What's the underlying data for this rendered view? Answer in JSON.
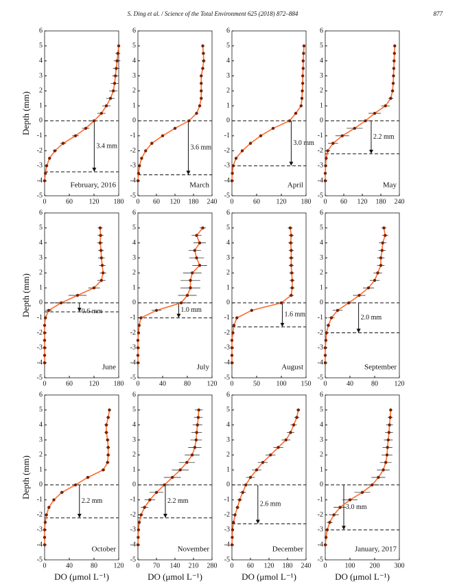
{
  "header": {
    "citation": "S. Ding et al. / Science of the Total Environment 625 (2018) 872–884",
    "page": "877"
  },
  "chart_data": [
    {
      "type": "profile",
      "label": "February, 2016",
      "annotation": "3.4 mm",
      "ylabel": "Depth (mm)",
      "hlines": [
        0,
        -3.4
      ],
      "xlim": [
        0,
        180
      ],
      "xticks": [
        0,
        60,
        120,
        180
      ],
      "ylim": [
        -5,
        6
      ],
      "yticks": [
        -5,
        -4,
        -3,
        -2,
        -1,
        0,
        1,
        2,
        3,
        4,
        5,
        6
      ],
      "y": [
        5,
        4.5,
        4,
        3.5,
        3,
        2.5,
        2,
        1.5,
        1,
        0.5,
        0,
        -0.5,
        -1,
        -1.5,
        -2,
        -2.5,
        -3,
        -3.5,
        -4
      ],
      "x": [
        180,
        178,
        176,
        174,
        172,
        170,
        167,
        160,
        150,
        138,
        120,
        100,
        75,
        45,
        25,
        12,
        5,
        2,
        0
      ],
      "xerr": [
        3,
        6,
        8,
        8,
        8,
        9,
        10,
        10,
        10,
        10,
        9,
        9,
        8,
        7,
        5,
        3,
        2,
        1,
        0
      ]
    },
    {
      "type": "profile",
      "label": "March",
      "annotation": "3.6 mm",
      "hlines": [
        0,
        -3.6
      ],
      "xlim": [
        0,
        240
      ],
      "xticks": [
        0,
        60,
        120,
        180,
        240
      ],
      "ylim": [
        -5,
        6
      ],
      "yticks": [
        -5,
        -4,
        -3,
        -2,
        -1,
        0,
        1,
        2,
        3,
        4,
        5,
        6
      ],
      "y": [
        5,
        4.5,
        4,
        3.5,
        3,
        2.5,
        2,
        1.5,
        1,
        0.5,
        0,
        -0.5,
        -1,
        -1.5,
        -2,
        -2.5,
        -3,
        -3.5,
        -4
      ],
      "x": [
        210,
        212,
        213,
        210,
        205,
        205,
        205,
        205,
        200,
        190,
        165,
        120,
        80,
        45,
        25,
        12,
        5,
        2,
        0
      ],
      "xerr": [
        4,
        5,
        6,
        5,
        4,
        4,
        4,
        4,
        4,
        5,
        5,
        5,
        4,
        4,
        3,
        2,
        1,
        1,
        0
      ]
    },
    {
      "type": "profile",
      "label": "April",
      "annotation": "3.0 mm",
      "hlines": [
        0,
        -3
      ],
      "xlim": [
        0,
        180
      ],
      "xticks": [
        0,
        60,
        120,
        180
      ],
      "ylim": [
        -5,
        6
      ],
      "yticks": [
        -5,
        -4,
        -3,
        -2,
        -1,
        0,
        1,
        2,
        3,
        4,
        5,
        6
      ],
      "y": [
        5,
        4.5,
        4,
        3.5,
        3,
        2.5,
        2,
        1.5,
        1,
        0.5,
        0,
        -0.5,
        -1,
        -1.5,
        -2,
        -2.5,
        -3,
        -3.5,
        -4
      ],
      "x": [
        175,
        174,
        173,
        173,
        172,
        172,
        171,
        170,
        168,
        155,
        140,
        100,
        70,
        45,
        25,
        10,
        3,
        1,
        0
      ],
      "xerr": [
        2,
        2,
        2,
        2,
        2,
        2,
        2,
        2,
        3,
        4,
        4,
        4,
        3,
        3,
        2,
        2,
        1,
        1,
        0
      ]
    },
    {
      "type": "profile",
      "label": "May",
      "annotation": "2.2 mm",
      "hlines": [
        0,
        -2.2
      ],
      "xlim": [
        0,
        240
      ],
      "xticks": [
        0,
        60,
        120,
        180,
        240
      ],
      "ylim": [
        -5,
        6
      ],
      "yticks": [
        -5,
        -4,
        -3,
        -2,
        -1,
        0,
        1,
        2,
        3,
        4,
        5,
        6
      ],
      "y": [
        5,
        4.5,
        4,
        3.5,
        3,
        2.5,
        2,
        1.5,
        1,
        0.5,
        0,
        -0.5,
        -1,
        -1.5,
        -2,
        -2.5,
        -3,
        -3.5,
        -4
      ],
      "x": [
        225,
        224,
        223,
        222,
        221,
        220,
        218,
        212,
        195,
        160,
        130,
        95,
        55,
        25,
        8,
        3,
        1,
        0,
        0
      ],
      "xerr": [
        3,
        3,
        3,
        4,
        4,
        4,
        5,
        8,
        14,
        20,
        24,
        26,
        22,
        16,
        8,
        3,
        1,
        0,
        0
      ]
    },
    {
      "type": "profile",
      "label": "June",
      "annotation": "0.6 mm",
      "ylabel": "Depth (mm)",
      "hlines": [
        0,
        -0.6
      ],
      "xlim": [
        0,
        180
      ],
      "xticks": [
        0,
        60,
        120,
        180
      ],
      "ylim": [
        -5,
        6
      ],
      "yticks": [
        -5,
        -4,
        -3,
        -2,
        -1,
        0,
        1,
        2,
        3,
        4,
        5,
        6
      ],
      "y": [
        5,
        4.5,
        4,
        3.5,
        3,
        2.5,
        2,
        1.5,
        1,
        0.5,
        0,
        -0.5,
        -1,
        -1.5,
        -2,
        -2.5,
        -3,
        -3.5,
        -4
      ],
      "x": [
        135,
        136,
        135,
        137,
        138,
        140,
        142,
        138,
        120,
        80,
        40,
        10,
        2,
        0,
        0,
        0,
        0,
        0,
        0
      ],
      "xerr": [
        6,
        7,
        7,
        7,
        8,
        8,
        8,
        10,
        14,
        22,
        25,
        8,
        2,
        0,
        0,
        0,
        0,
        0,
        0
      ]
    },
    {
      "type": "profile",
      "label": "July",
      "annotation": "1.0 mm",
      "hlines": [
        0,
        -1
      ],
      "xlim": [
        0,
        120
      ],
      "xticks": [
        0,
        40,
        80,
        120
      ],
      "ylim": [
        -5,
        6
      ],
      "yticks": [
        -5,
        -4,
        -3,
        -2,
        -1,
        0,
        1,
        2,
        3,
        4,
        5,
        6
      ],
      "y": [
        5,
        4.5,
        4,
        3.5,
        3,
        2.5,
        2,
        1.5,
        1,
        0.5,
        0,
        -0.5,
        -1,
        -1.5,
        -2,
        -2.5,
        -3,
        -3.5,
        -4
      ],
      "x": [
        105,
        95,
        100,
        92,
        95,
        100,
        88,
        85,
        85,
        80,
        70,
        30,
        5,
        2,
        1,
        0,
        0,
        0,
        0
      ],
      "xerr": [
        5,
        8,
        10,
        10,
        12,
        12,
        15,
        16,
        16,
        15,
        14,
        8,
        2,
        1,
        0,
        0,
        0,
        0,
        0
      ]
    },
    {
      "type": "profile",
      "label": "August",
      "annotation": "1.6 mm",
      "hlines": [
        0,
        -1.6
      ],
      "xlim": [
        0,
        150
      ],
      "xticks": [
        0,
        50,
        100,
        150
      ],
      "ylim": [
        -5,
        6
      ],
      "yticks": [
        -5,
        -4,
        -3,
        -2,
        -1,
        0,
        1,
        2,
        3,
        4,
        5,
        6
      ],
      "y": [
        5,
        4.5,
        4,
        3.5,
        3,
        2.5,
        2,
        1.5,
        1,
        0.5,
        0,
        -0.5,
        -1,
        -1.5,
        -2,
        -2.5,
        -3,
        -3.5,
        -4
      ],
      "x": [
        118,
        120,
        119,
        120,
        120,
        120,
        121,
        122,
        122,
        120,
        100,
        40,
        10,
        4,
        2,
        0,
        0,
        0,
        0
      ],
      "xerr": [
        5,
        5,
        5,
        5,
        5,
        5,
        5,
        5,
        5,
        5,
        4,
        3,
        1,
        1,
        0,
        0,
        0,
        0,
        0
      ]
    },
    {
      "type": "profile",
      "label": "September",
      "annotation": "2.0 mm",
      "hlines": [
        0,
        -2
      ],
      "xlim": [
        0,
        120
      ],
      "xticks": [
        0,
        40,
        80,
        120
      ],
      "ylim": [
        -5,
        6
      ],
      "yticks": [
        -5,
        -4,
        -3,
        -2,
        -1,
        0,
        1,
        2,
        3,
        4,
        5,
        6
      ],
      "y": [
        5,
        4.5,
        4,
        3.5,
        3,
        2.5,
        2,
        1.5,
        1,
        0.5,
        0,
        -0.5,
        -1,
        -1.5,
        -2,
        -2.5,
        -3,
        -3.5,
        -4
      ],
      "x": [
        95,
        97,
        93,
        92,
        90,
        90,
        85,
        80,
        70,
        55,
        38,
        20,
        10,
        5,
        2,
        1,
        0,
        0,
        0
      ],
      "xerr": [
        4,
        5,
        6,
        6,
        6,
        6,
        7,
        8,
        9,
        10,
        10,
        8,
        5,
        3,
        1,
        1,
        0,
        0,
        0
      ]
    },
    {
      "type": "profile",
      "label": "October",
      "annotation": "2.2 mm",
      "ylabel": "Depth (mm)",
      "xlabel": "DO (μmol L⁻¹)",
      "hlines": [
        0,
        -2.2
      ],
      "xlim": [
        0,
        120
      ],
      "xticks": [
        0,
        40,
        80,
        120
      ],
      "ylim": [
        -5,
        6
      ],
      "yticks": [
        -5,
        -4,
        -3,
        -2,
        -1,
        0,
        1,
        2,
        3,
        4,
        5,
        6
      ],
      "y": [
        5,
        4.5,
        4,
        3.5,
        3,
        2.5,
        2,
        1.5,
        1,
        0.5,
        0,
        -0.5,
        -1,
        -1.5,
        -2,
        -2.5,
        -3,
        -3.5,
        -4
      ],
      "x": [
        105,
        103,
        100,
        100,
        102,
        103,
        103,
        102,
        95,
        70,
        50,
        28,
        15,
        7,
        3,
        1,
        0,
        0,
        0
      ],
      "xerr": [
        2,
        3,
        3,
        3,
        3,
        3,
        3,
        3,
        3,
        3,
        3,
        3,
        2,
        2,
        1,
        1,
        0,
        0,
        0
      ]
    },
    {
      "type": "profile",
      "label": "November",
      "annotation": "2.2 mm",
      "xlabel": "DO (μmol L⁻¹)",
      "hlines": [
        0,
        -2.2
      ],
      "xlim": [
        0,
        280
      ],
      "xticks": [
        0,
        70,
        140,
        210,
        280
      ],
      "ylim": [
        -5,
        6
      ],
      "yticks": [
        -5,
        -4,
        -3,
        -2,
        -1,
        0,
        1,
        2,
        3,
        4,
        5,
        6
      ],
      "y": [
        5,
        4.5,
        4,
        3.5,
        3,
        2.5,
        2,
        1.5,
        1,
        0.5,
        0,
        -0.5,
        -1,
        -1.5,
        -2,
        -2.5,
        -3,
        -3.5,
        -4
      ],
      "x": [
        230,
        228,
        225,
        222,
        220,
        215,
        205,
        185,
        160,
        130,
        100,
        70,
        45,
        25,
        12,
        5,
        2,
        1,
        0
      ],
      "xerr": [
        15,
        16,
        18,
        20,
        22,
        25,
        28,
        30,
        32,
        32,
        30,
        26,
        20,
        14,
        8,
        4,
        2,
        1,
        0
      ]
    },
    {
      "type": "profile",
      "label": "December",
      "annotation": "2.6 mm",
      "xlabel": "DO (μmol L⁻¹)",
      "hlines": [
        0,
        -2.6
      ],
      "xlim": [
        0,
        240
      ],
      "xticks": [
        0,
        60,
        120,
        180,
        240
      ],
      "ylim": [
        -5,
        6
      ],
      "yticks": [
        -5,
        -4,
        -3,
        -2,
        -1,
        0,
        1,
        2,
        3,
        4,
        5,
        6
      ],
      "y": [
        5,
        4.5,
        4,
        3.5,
        3,
        2.5,
        2,
        1.5,
        1,
        0.5,
        0,
        -0.5,
        -1,
        -1.5,
        -2,
        -2.5,
        -3,
        -3.5,
        -4
      ],
      "x": [
        215,
        210,
        200,
        190,
        175,
        150,
        125,
        100,
        80,
        60,
        45,
        35,
        25,
        18,
        10,
        5,
        2,
        1,
        0
      ],
      "xerr": [
        6,
        8,
        10,
        12,
        14,
        16,
        16,
        16,
        15,
        14,
        12,
        10,
        8,
        6,
        4,
        2,
        1,
        0,
        0
      ]
    },
    {
      "type": "profile",
      "label": "January, 2017",
      "annotation": "3.0 mm",
      "xlabel": "DO (μmol L⁻¹)",
      "hlines": [
        0,
        -3
      ],
      "xlim": [
        0,
        300
      ],
      "xticks": [
        0,
        100,
        200,
        300
      ],
      "ylim": [
        -5,
        6
      ],
      "yticks": [
        -5,
        -4,
        -3,
        -2,
        -1,
        0,
        1,
        2,
        3,
        4,
        5,
        6
      ],
      "y": [
        5,
        4.5,
        4,
        3.5,
        3,
        2.5,
        2,
        1.5,
        1,
        0.5,
        0,
        -0.5,
        -1,
        -1.5,
        -2,
        -2.5,
        -3,
        -3.5,
        -4
      ],
      "x": [
        265,
        263,
        260,
        258,
        255,
        252,
        250,
        245,
        235,
        215,
        190,
        150,
        100,
        60,
        35,
        18,
        8,
        3,
        0
      ],
      "xerr": [
        6,
        10,
        14,
        16,
        18,
        20,
        22,
        24,
        26,
        28,
        30,
        32,
        30,
        26,
        20,
        12,
        6,
        2,
        0
      ]
    }
  ]
}
